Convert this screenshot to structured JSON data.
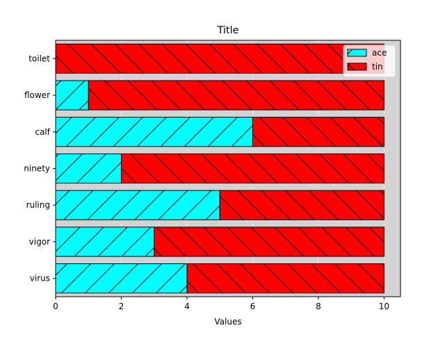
{
  "chart_data": {
    "type": "bar",
    "orientation": "horizontal",
    "stacked": true,
    "title": "Title",
    "xlabel": "Values",
    "ylabel": "",
    "categories": [
      "virus",
      "vigor",
      "ruling",
      "ninety",
      "calf",
      "flower",
      "toilet"
    ],
    "series": [
      {
        "name": "ace",
        "values": [
          4,
          3,
          5,
          2,
          6,
          1,
          0
        ],
        "color": "#00ffff",
        "hatch": "forward-diagonal"
      },
      {
        "name": "tin",
        "values": [
          6,
          7,
          5,
          8,
          4,
          9,
          10
        ],
        "color": "#ff0000",
        "hatch": "back-diagonal"
      }
    ],
    "xlim": [
      0,
      10.5
    ],
    "xticks": [
      0,
      2,
      4,
      6,
      8,
      10
    ],
    "xtick_labels": [
      "0",
      "2",
      "4",
      "6",
      "8",
      "10"
    ],
    "grid": "x-dashed",
    "background_color": "#d3d3d3",
    "legend_position": "top-right"
  }
}
